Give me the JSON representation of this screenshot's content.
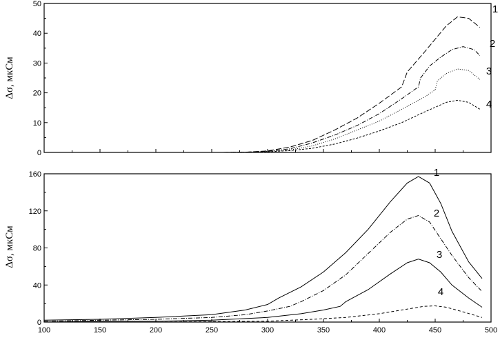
{
  "chart_data": [
    {
      "type": "line",
      "ylabel": "Δσ, мкСм",
      "xlim": [
        100,
        500
      ],
      "ylim": [
        0,
        50
      ],
      "yticks": [
        0,
        10,
        20,
        30,
        40,
        50
      ],
      "xticks": [
        100,
        150,
        200,
        250,
        300,
        350,
        400,
        450,
        500
      ],
      "xtick_labels_shown": false,
      "series": [
        {
          "name": "1",
          "dash": "8,3",
          "x": [
            260,
            280,
            300,
            320,
            340,
            360,
            380,
            400,
            420,
            425,
            440,
            450,
            460,
            470,
            480,
            490
          ],
          "y": [
            0,
            0.1,
            0.5,
            1.8,
            4.0,
            7.5,
            11.5,
            16.5,
            22.0,
            27.0,
            33.5,
            38.0,
            42.5,
            45.5,
            45.0,
            42.0
          ]
        },
        {
          "name": "2",
          "dash": "6,2,1,2",
          "x": [
            260,
            280,
            300,
            320,
            340,
            360,
            380,
            400,
            420,
            435,
            437,
            445,
            455,
            465,
            475,
            485,
            490
          ],
          "y": [
            0,
            0.1,
            0.4,
            1.2,
            3.2,
            5.8,
            9.0,
            13.0,
            18.0,
            22.0,
            25.0,
            29.0,
            32.0,
            34.5,
            35.5,
            34.5,
            32.5
          ]
        },
        {
          "name": "3",
          "dash": "1,2",
          "x": [
            260,
            280,
            300,
            320,
            340,
            360,
            380,
            400,
            420,
            440,
            450,
            452,
            460,
            470,
            480,
            490
          ],
          "y": [
            0,
            0.1,
            0.3,
            0.8,
            2.2,
            4.5,
            7.5,
            10.5,
            14.5,
            18.5,
            21.0,
            24.0,
            26.5,
            28.0,
            27.5,
            24.5
          ]
        },
        {
          "name": "4",
          "dash": "3,2",
          "x": [
            260,
            280,
            300,
            320,
            340,
            360,
            380,
            400,
            420,
            440,
            460,
            470,
            480,
            490
          ],
          "y": [
            0,
            0.05,
            0.2,
            0.6,
            1.4,
            2.8,
            4.8,
            7.2,
            10.0,
            13.5,
            16.8,
            17.5,
            16.8,
            14.5
          ]
        }
      ]
    },
    {
      "type": "line",
      "ylabel": "Δσ, мкСм",
      "xlim": [
        100,
        500
      ],
      "ylim": [
        0,
        160
      ],
      "yticks": [
        0,
        40,
        80,
        120,
        160
      ],
      "xticks": [
        100,
        150,
        200,
        250,
        300,
        350,
        400,
        450,
        500
      ],
      "series": [
        {
          "name": "1",
          "dash": "",
          "x": [
            100,
            150,
            200,
            250,
            280,
            300,
            310,
            330,
            350,
            370,
            390,
            410,
            425,
            435,
            445,
            455,
            465,
            480,
            492
          ],
          "y": [
            2,
            3,
            5,
            8,
            13,
            19,
            26,
            38,
            54,
            75,
            100,
            130,
            150,
            157,
            150,
            128,
            98,
            65,
            47
          ]
        },
        {
          "name": "2",
          "dash": "6,2,1,2",
          "x": [
            100,
            150,
            200,
            250,
            280,
            300,
            320,
            330,
            350,
            370,
            390,
            410,
            425,
            435,
            445,
            455,
            465,
            480,
            492
          ],
          "y": [
            1,
            2,
            3,
            5,
            8,
            12,
            17,
            22,
            34,
            51,
            74,
            97,
            111,
            115,
            108,
            90,
            72,
            48,
            33
          ]
        },
        {
          "name": "3",
          "dash": "",
          "x": [
            100,
            150,
            200,
            250,
            300,
            330,
            350,
            365,
            370,
            390,
            410,
            425,
            435,
            445,
            455,
            465,
            480,
            492
          ],
          "y": [
            0,
            1,
            1,
            2,
            5,
            9,
            13,
            17,
            22,
            35,
            52,
            64,
            68,
            64,
            54,
            40,
            26,
            16
          ]
        },
        {
          "name": "4",
          "dash": "4,3",
          "x": [
            100,
            150,
            200,
            250,
            300,
            340,
            370,
            400,
            420,
            440,
            450,
            460,
            475,
            492
          ],
          "y": [
            0,
            0,
            0,
            0.5,
            1,
            3,
            5,
            9,
            13,
            17,
            17.5,
            16,
            11,
            5
          ]
        }
      ]
    }
  ]
}
